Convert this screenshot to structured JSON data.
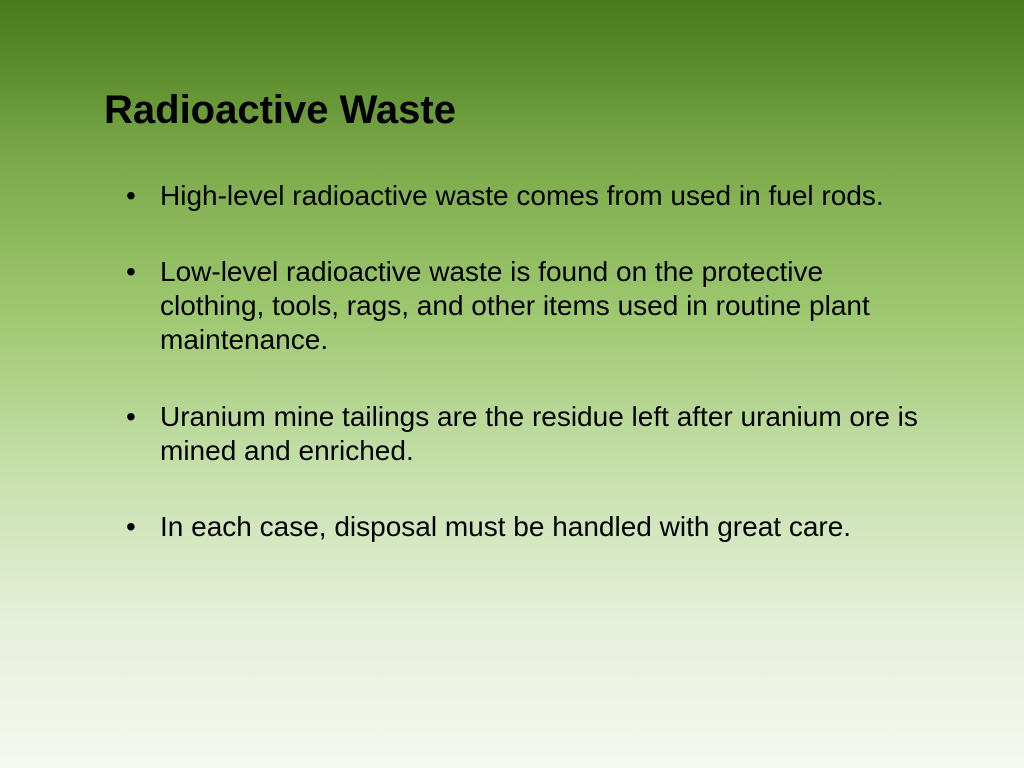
{
  "slide": {
    "title": "Radioactive Waste",
    "bullets": [
      "High-level radioactive waste comes from used in fuel rods.",
      "Low-level radioactive waste is found on  the protective clothing, tools, rags, and other items used in routine plant maintenance.",
      "Uranium mine tailings are the residue left after uranium ore is mined and enriched.",
      "In each case, disposal must be handled with great care."
    ],
    "background_gradient": {
      "top": "#4a7a1a",
      "bottom": "#f5f8f0"
    },
    "text_color": "#000000",
    "title_fontsize": 40,
    "body_fontsize": 28,
    "font_family": "Arial"
  }
}
